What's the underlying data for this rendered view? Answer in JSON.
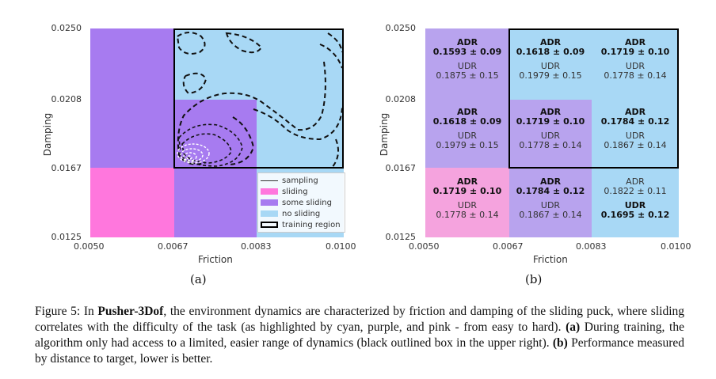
{
  "colors": {
    "sliding": "#ff77dd",
    "some_sliding": "#a77bf0",
    "no_sliding": "#a8d8f5",
    "sliding_light": "#f5a3de",
    "some_sliding_light": "#b8a3ee"
  },
  "axes": {
    "xlabel": "Friction",
    "ylabel": "Damping",
    "xticks": [
      "0.0050",
      "0.0067",
      "0.0083",
      "0.0100"
    ],
    "yticks": [
      "0.0250",
      "0.0208",
      "0.0167",
      "0.0125"
    ]
  },
  "panel_a": {
    "sublabel": "(a)",
    "legend": {
      "sampling": "sampling",
      "sliding": "sliding",
      "some_sliding": "some sliding",
      "no_sliding": "no sliding",
      "training_region": "training region"
    }
  },
  "panel_b": {
    "sublabel": "(b)",
    "cells": [
      {
        "adr_label": "ADR",
        "adr": "0.1593 ± 0.09",
        "adr_bold": true,
        "udr_label": "UDR",
        "udr": "0.1875 ± 0.15",
        "udr_bold": false
      },
      {
        "adr_label": "ADR",
        "adr": "0.1618 ± 0.09",
        "adr_bold": true,
        "udr_label": "UDR",
        "udr": "0.1979 ± 0.15",
        "udr_bold": false
      },
      {
        "adr_label": "ADR",
        "adr": "0.1719 ± 0.10",
        "adr_bold": true,
        "udr_label": "UDR",
        "udr": "0.1778 ± 0.14",
        "udr_bold": false
      },
      {
        "adr_label": "ADR",
        "adr": "0.1618 ± 0.09",
        "adr_bold": true,
        "udr_label": "UDR",
        "udr": "0.1979 ± 0.15",
        "udr_bold": false
      },
      {
        "adr_label": "ADR",
        "adr": "0.1719 ± 0.10",
        "adr_bold": true,
        "udr_label": "UDR",
        "udr": "0.1778 ± 0.14",
        "udr_bold": false
      },
      {
        "adr_label": "ADR",
        "adr": "0.1784 ± 0.12",
        "adr_bold": true,
        "udr_label": "UDR",
        "udr": "0.1867 ± 0.14",
        "udr_bold": false
      },
      {
        "adr_label": "ADR",
        "adr": "0.1719 ± 0.10",
        "adr_bold": true,
        "udr_label": "UDR",
        "udr": "0.1778 ± 0.14",
        "udr_bold": false
      },
      {
        "adr_label": "ADR",
        "adr": "0.1784 ± 0.12",
        "adr_bold": true,
        "udr_label": "UDR",
        "udr": "0.1867 ± 0.14",
        "udr_bold": false
      },
      {
        "adr_label": "ADR",
        "adr": "0.1822 ± 0.11",
        "adr_bold": false,
        "udr_label": "UDR",
        "udr": "0.1695 ± 0.12",
        "udr_bold": true
      }
    ]
  },
  "caption": {
    "fig": "Figure 5: In ",
    "env": "Pusher-3Dof",
    "t1": ", the environment dynamics are characterized by friction and damping of the sliding puck, where sliding correlates with the difficulty of the task (as highlighted by cyan, purple, and pink - from easy to hard). ",
    "a": "(a)",
    "t2": " During training, the algorithm only had access to a limited, easier range of dynamics (black outlined box in the upper right). ",
    "b": "(b)",
    "t3": " Performance measured by distance to target, lower is better."
  }
}
